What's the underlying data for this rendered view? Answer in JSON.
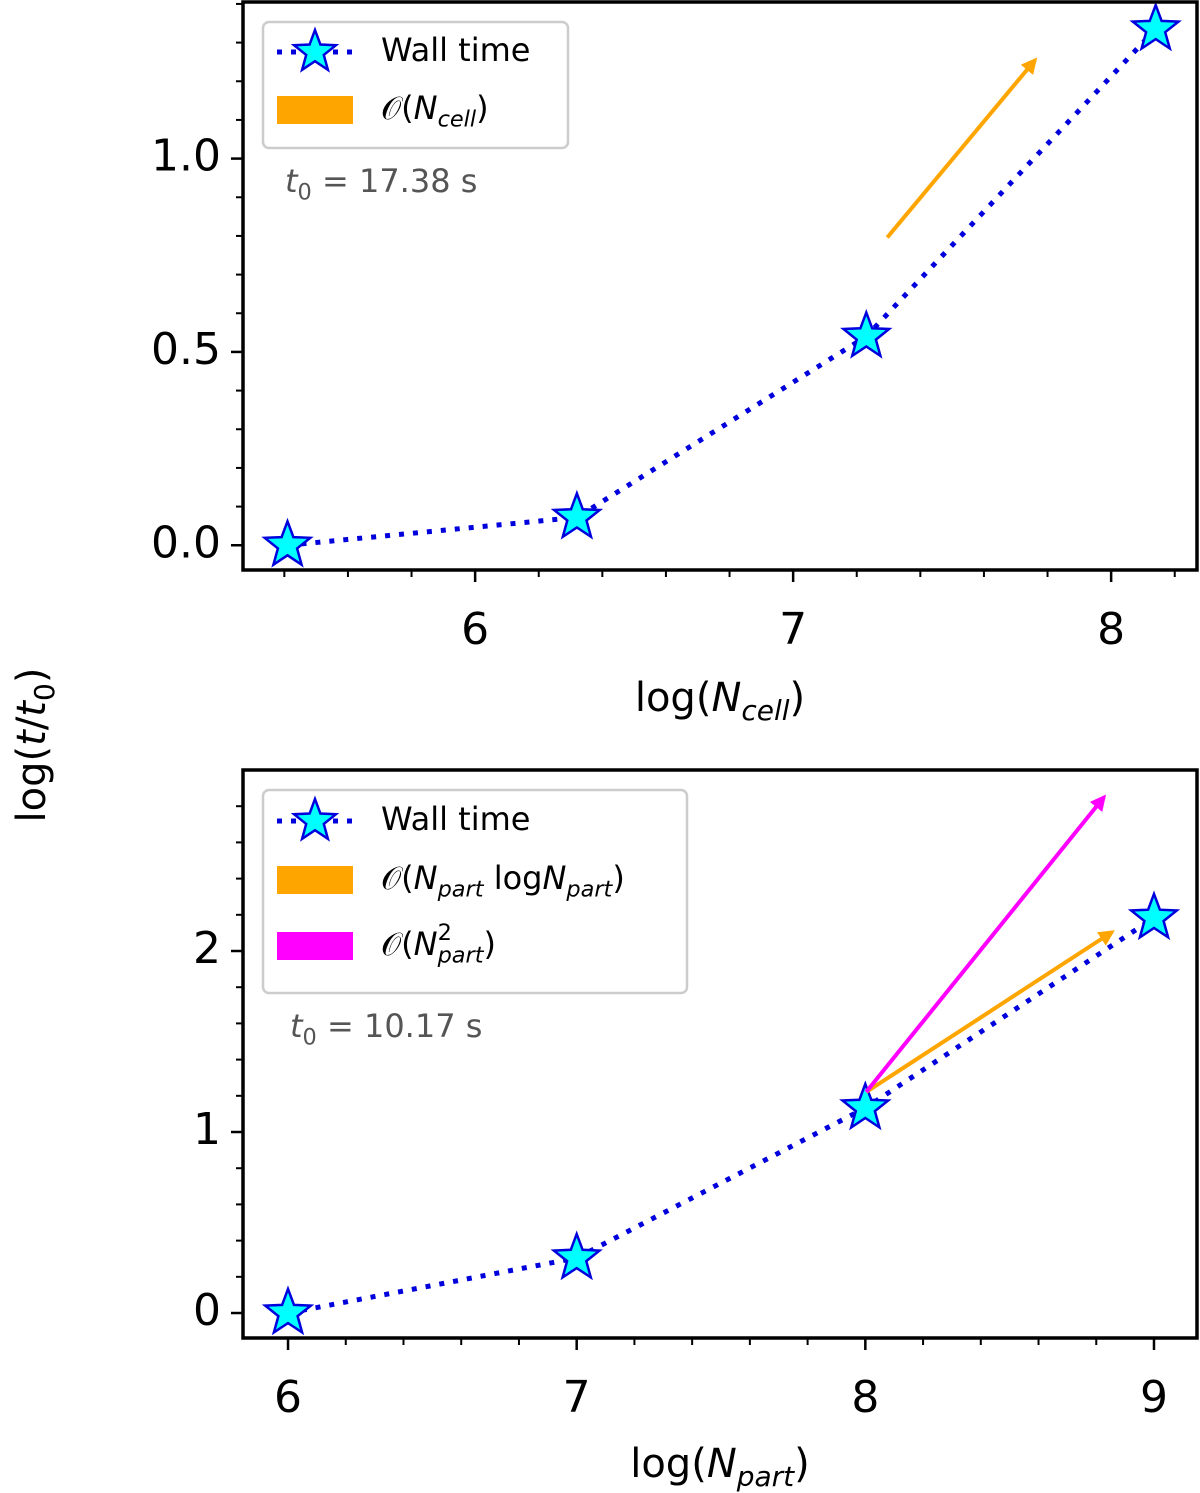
{
  "chart_data": [
    {
      "type": "line",
      "ylabel": [
        {
          "text": "log("
        },
        {
          "text": "t",
          "italic": true
        },
        {
          "text": "/"
        },
        {
          "text": "t",
          "italic": true
        },
        {
          "text": "0",
          "sub": true
        },
        {
          "text": ")"
        }
      ],
      "xlabel": [
        {
          "text": "log("
        },
        {
          "text": "N",
          "italic": true
        },
        {
          "text": "cell",
          "sub": true,
          "italic": true
        },
        {
          "text": ")"
        }
      ],
      "annotation": [
        {
          "text": "t",
          "italic": true
        },
        {
          "text": "0",
          "sub": true
        },
        {
          "text": " = 17.38 s"
        }
      ],
      "series": [
        {
          "name": [
            {
              "text": "Wall time"
            }
          ],
          "color": "#0000dd",
          "marker_color": "#00ffff",
          "x": [
            5.41,
            6.32,
            7.23,
            8.14
          ],
          "values": [
            0,
            0.072,
            0.54,
            1.335
          ]
        }
      ],
      "arrows": [
        {
          "name": [
            {
              "text": "𝒪("
            },
            {
              "text": "N",
              "italic": true
            },
            {
              "text": "cell",
              "sub": true,
              "italic": true
            },
            {
              "text": ")"
            }
          ],
          "color": "#ffa500",
          "x": [
            7.296,
            7.761
          ],
          "y": [
            0.796,
            1.255
          ]
        }
      ],
      "xlim": [
        5.27,
        8.27
      ],
      "ylim": [
        -0.064,
        1.405
      ],
      "xticks": [
        6,
        7,
        8
      ],
      "yticks": [
        {
          "value": 0,
          "label": "0.0"
        },
        {
          "value": 0.5,
          "label": "0.5"
        },
        {
          "value": 1,
          "label": "1.0"
        }
      ],
      "xminorticks": [
        5.4,
        5.6,
        5.8,
        6.2,
        6.4,
        6.6,
        6.8,
        7.2,
        7.4,
        7.6,
        7.8,
        8.2
      ],
      "yminorticks": [
        0.1,
        0.2,
        0.3,
        0.4,
        0.6,
        0.7,
        0.8,
        0.9,
        1.1,
        1.2,
        1.3,
        1.4
      ],
      "legend": "upper left"
    },
    {
      "type": "line",
      "xlabel": [
        {
          "text": "log("
        },
        {
          "text": "N",
          "italic": true
        },
        {
          "text": "part",
          "sub": true,
          "italic": true
        },
        {
          "text": ")"
        }
      ],
      "annotation": [
        {
          "text": "t",
          "italic": true
        },
        {
          "text": "0",
          "sub": true
        },
        {
          "text": " = 10.17 s"
        }
      ],
      "series": [
        {
          "name": [
            {
              "text": "Wall time"
            }
          ],
          "color": "#0000dd",
          "marker_color": "#00ffff",
          "x": [
            6,
            7,
            8,
            9
          ],
          "values": [
            0,
            0.304,
            1.133,
            2.183
          ]
        }
      ],
      "arrows": [
        {
          "name": [
            {
              "text": "𝒪("
            },
            {
              "text": "N",
              "italic": true
            },
            {
              "text": "part",
              "sub": true,
              "italic": true
            },
            {
              "text": " log"
            },
            {
              "text": "N",
              "italic": true
            },
            {
              "text": "part",
              "sub": true,
              "italic": true
            },
            {
              "text": ")"
            }
          ],
          "color": "#ffa500",
          "x": [
            8.003,
            8.855
          ],
          "y": [
            1.221,
            2.105
          ]
        },
        {
          "name": [
            {
              "text": "𝒪("
            },
            {
              "text": "N",
              "italic": true
            },
            {
              "text": "2",
              "sup": true
            },
            {
              "text": "part",
              "sub": true,
              "italic": true,
              "under": true
            },
            {
              "text": ")"
            }
          ],
          "color": "#ff00ff",
          "x": [
            8.003,
            8.827
          ],
          "y": [
            1.221,
            2.851
          ]
        }
      ],
      "xlim": [
        5.844,
        9.149
      ],
      "ylim": [
        -0.138,
        3.0
      ],
      "xticks": [
        6,
        7,
        8,
        9
      ],
      "yticks": [
        0,
        1,
        2
      ],
      "xminorticks": [
        6.2,
        6.4,
        6.6,
        6.8,
        7.2,
        7.4,
        7.6,
        7.8,
        8.2,
        8.4,
        8.6,
        8.8
      ],
      "yminorticks": [
        0.2,
        0.4,
        0.6,
        0.8,
        1.2,
        1.4,
        1.6,
        1.8,
        2.2,
        2.4,
        2.6,
        2.8
      ],
      "legend": "upper left"
    }
  ]
}
